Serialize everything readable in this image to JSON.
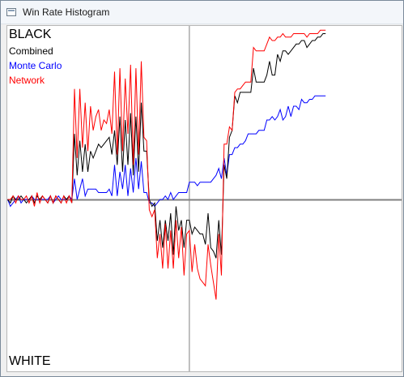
{
  "window": {
    "title": "Win Rate Histogram"
  },
  "labels": {
    "top": "BLACK",
    "bottom": "WHITE",
    "combined": "Combined",
    "monte_carlo": "Monte Carlo",
    "network": "Network"
  },
  "colors": {
    "combined": "#000000",
    "monte_carlo": "#0000ff",
    "network": "#ff0000",
    "center_line": "#808080",
    "cursor_line": "#808080"
  },
  "chart_data": {
    "type": "line",
    "ylim": [
      0,
      1
    ],
    "cursor_move": 68,
    "series": [
      {
        "name": "Combined",
        "values": [
          0.5,
          0.49,
          0.51,
          0.5,
          0.5,
          0.51,
          0.5,
          0.49,
          0.5,
          0.51,
          0.49,
          0.51,
          0.5,
          0.51,
          0.5,
          0.49,
          0.51,
          0.49,
          0.51,
          0.5,
          0.49,
          0.51,
          0.5,
          0.51,
          0.49,
          0.69,
          0.57,
          0.67,
          0.58,
          0.66,
          0.58,
          0.64,
          0.62,
          0.64,
          0.66,
          0.65,
          0.66,
          0.67,
          0.68,
          0.63,
          0.7,
          0.6,
          0.74,
          0.58,
          0.73,
          0.6,
          0.75,
          0.57,
          0.74,
          0.58,
          0.78,
          0.64,
          0.64,
          0.5,
          0.48,
          0.49,
          0.38,
          0.44,
          0.36,
          0.44,
          0.38,
          0.46,
          0.34,
          0.48,
          0.41,
          0.44,
          0.36,
          0.44,
          0.44,
          0.4,
          0.42,
          0.41,
          0.4,
          0.4,
          0.37,
          0.46,
          0.36,
          0.35,
          0.33,
          0.44,
          0.34,
          0.6,
          0.56,
          0.68,
          0.7,
          0.8,
          0.78,
          0.81,
          0.81,
          0.81,
          0.81,
          0.81,
          0.88,
          0.84,
          0.84,
          0.84,
          0.84,
          0.86,
          0.9,
          0.86,
          0.86,
          0.92,
          0.9,
          0.93,
          0.93,
          0.92,
          0.93,
          0.94,
          0.95,
          0.95,
          0.96,
          0.96,
          0.94,
          0.95,
          0.96,
          0.96,
          0.97,
          0.97,
          0.98,
          0.98
        ]
      },
      {
        "name": "Monte Carlo",
        "values": [
          0.5,
          0.48,
          0.49,
          0.5,
          0.51,
          0.49,
          0.5,
          0.5,
          0.5,
          0.51,
          0.5,
          0.5,
          0.5,
          0.5,
          0.5,
          0.5,
          0.51,
          0.49,
          0.5,
          0.51,
          0.5,
          0.5,
          0.5,
          0.51,
          0.5,
          0.56,
          0.5,
          0.53,
          0.56,
          0.51,
          0.53,
          0.53,
          0.53,
          0.53,
          0.52,
          0.52,
          0.52,
          0.52,
          0.53,
          0.51,
          0.6,
          0.51,
          0.58,
          0.53,
          0.6,
          0.51,
          0.59,
          0.52,
          0.62,
          0.53,
          0.61,
          0.52,
          0.52,
          0.49,
          0.49,
          0.48,
          0.49,
          0.5,
          0.5,
          0.51,
          0.5,
          0.52,
          0.5,
          0.51,
          0.52,
          0.52,
          0.52,
          0.52,
          0.55,
          0.55,
          0.55,
          0.54,
          0.55,
          0.55,
          0.55,
          0.55,
          0.55,
          0.56,
          0.57,
          0.59,
          0.56,
          0.62,
          0.57,
          0.63,
          0.63,
          0.65,
          0.65,
          0.66,
          0.66,
          0.67,
          0.69,
          0.69,
          0.69,
          0.69,
          0.7,
          0.7,
          0.7,
          0.73,
          0.73,
          0.74,
          0.73,
          0.74,
          0.76,
          0.73,
          0.74,
          0.77,
          0.74,
          0.77,
          0.77,
          0.76,
          0.79,
          0.78,
          0.78,
          0.79,
          0.79,
          0.8,
          0.8,
          0.8,
          0.8,
          0.8
        ]
      },
      {
        "name": "Network",
        "values": [
          0.5,
          0.5,
          0.51,
          0.49,
          0.51,
          0.5,
          0.5,
          0.51,
          0.49,
          0.51,
          0.48,
          0.52,
          0.49,
          0.51,
          0.5,
          0.49,
          0.51,
          0.49,
          0.51,
          0.5,
          0.49,
          0.51,
          0.49,
          0.51,
          0.49,
          0.82,
          0.62,
          0.82,
          0.65,
          0.78,
          0.64,
          0.77,
          0.7,
          0.74,
          0.76,
          0.7,
          0.73,
          0.72,
          0.76,
          0.69,
          0.87,
          0.63,
          0.88,
          0.64,
          0.85,
          0.69,
          0.89,
          0.6,
          0.88,
          0.63,
          0.9,
          0.68,
          0.67,
          0.47,
          0.45,
          0.47,
          0.33,
          0.4,
          0.3,
          0.43,
          0.3,
          0.41,
          0.3,
          0.44,
          0.33,
          0.42,
          0.28,
          0.4,
          0.41,
          0.29,
          0.37,
          0.3,
          0.27,
          0.26,
          0.25,
          0.37,
          0.31,
          0.26,
          0.21,
          0.4,
          0.28,
          0.66,
          0.66,
          0.71,
          0.7,
          0.81,
          0.82,
          0.82,
          0.83,
          0.84,
          0.84,
          0.84,
          0.94,
          0.93,
          0.93,
          0.93,
          0.93,
          0.95,
          0.97,
          0.96,
          0.96,
          0.97,
          0.97,
          0.98,
          0.97,
          0.97,
          0.97,
          0.98,
          0.98,
          0.98,
          0.98,
          0.98,
          0.97,
          0.98,
          0.98,
          0.98,
          0.98,
          0.99,
          0.99,
          0.99
        ]
      }
    ]
  }
}
